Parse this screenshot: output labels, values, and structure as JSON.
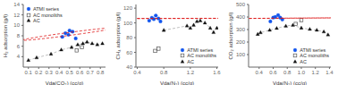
{
  "chart_data": [
    {
      "type": "scatter",
      "x_label": "Vda(CO₂) (cc/g)",
      "y_label": "H₂ adsorption (g/l)",
      "xlim": [
        0.05,
        0.85
      ],
      "ylim": [
        2,
        14
      ],
      "xticks": [
        0.1,
        0.2,
        0.3,
        0.4,
        0.5,
        0.6,
        0.7,
        0.8
      ],
      "yticks": [
        4,
        6,
        8,
        10,
        12,
        14
      ],
      "grid": false,
      "legend": "upper left",
      "series": [
        {
          "name": "ATMI series",
          "color": "#1155ee",
          "marker": "circle",
          "x": [
            0.43,
            0.46,
            0.49,
            0.5,
            0.53,
            0.56
          ],
          "values": [
            7.8,
            8.5,
            8.2,
            9.0,
            8.8,
            7.5
          ]
        },
        {
          "name": "AC monoliths",
          "color": "#555555",
          "marker": "open_square",
          "line_style": "dashed",
          "x": [
            0.57,
            0.62
          ],
          "values": [
            5.2,
            5.8
          ]
        },
        {
          "name": "AC",
          "color": "#111111",
          "marker": "triangle",
          "line_style": "dashed",
          "x": [
            0.1,
            0.18,
            0.32,
            0.42,
            0.52,
            0.58,
            0.63,
            0.67,
            0.72,
            0.77,
            0.82
          ],
          "values": [
            3.3,
            3.8,
            4.5,
            5.3,
            5.8,
            6.3,
            6.5,
            6.8,
            6.5,
            6.3,
            6.5
          ]
        }
      ],
      "ellipse": {
        "x": 0.495,
        "y": 8.35,
        "width": 0.2,
        "height": 2.6,
        "angle": -20,
        "color": "#dd1111",
        "line_style": "dashed"
      }
    },
    {
      "type": "scatter",
      "x_label": "Vda(N₂) (cc/g)",
      "y_label": "CH₄ adsorption (g/l)",
      "xlim": [
        0.38,
        1.62
      ],
      "ylim": [
        40,
        125
      ],
      "xticks": [
        0.4,
        0.8,
        1.2,
        1.6
      ],
      "yticks": [
        40,
        60,
        80,
        100,
        120
      ],
      "grid": false,
      "legend": "lower right",
      "series": [
        {
          "name": "ATMI series",
          "color": "#1155ee",
          "marker": "circle",
          "x": [
            0.58,
            0.62,
            0.65,
            0.68,
            0.72,
            0.75
          ],
          "values": [
            103,
            107,
            105,
            110,
            106,
            102
          ]
        },
        {
          "name": "AC monoliths",
          "color": "#555555",
          "marker": "open_square",
          "line_style": "dashed",
          "x": [
            0.67,
            0.72
          ],
          "values": [
            62,
            65
          ]
        },
        {
          "name": "AC",
          "color": "#111111",
          "marker": "triangle",
          "line_style": "dashed",
          "x": [
            0.8,
            1.15,
            1.2,
            1.25,
            1.3,
            1.35,
            1.42,
            1.5,
            1.55,
            1.6
          ],
          "values": [
            90,
            96,
            93,
            97,
            102,
            103,
            100,
            93,
            87,
            93
          ]
        }
      ],
      "ellipse": {
        "x": 0.655,
        "y": 106,
        "width": 0.19,
        "height": 13,
        "angle": -80,
        "color": "#dd1111",
        "line_style": "dashed"
      }
    },
    {
      "type": "scatter",
      "x_label": "Vda(N₂) (cc/g)",
      "y_label": "CO₂ adsorption (g/l)",
      "xlim": [
        0.25,
        1.42
      ],
      "ylim": [
        0,
        500
      ],
      "xticks": [
        0.4,
        0.6,
        0.8,
        {
          "value": 1.0,
          "label": "1.0"
        },
        1.2,
        1.4
      ],
      "yticks": [
        100,
        200,
        300,
        400,
        500
      ],
      "grid": false,
      "legend": "lower right",
      "series": [
        {
          "name": "ATMI series",
          "color": "#1155ee",
          "marker": "circle",
          "x": [
            0.56,
            0.6,
            0.63,
            0.67,
            0.7,
            0.73
          ],
          "values": [
            365,
            395,
            400,
            415,
            395,
            380
          ]
        },
        {
          "name": "AC monoliths",
          "color": "#555555",
          "marker": "open_square",
          "line_style": "dashed",
          "x": [
            0.92,
            1.0
          ],
          "values": [
            345,
            375
          ]
        },
        {
          "name": "AC",
          "color": "#111111",
          "marker": "triangle",
          "line_style": "dashed",
          "x": [
            0.38,
            0.42,
            0.55,
            0.65,
            0.78,
            0.88,
            1.0,
            1.12,
            1.22,
            1.32,
            1.38
          ],
          "values": [
            262,
            275,
            295,
            310,
            328,
            335,
            312,
            302,
            295,
            282,
            258
          ]
        }
      ],
      "ellipse": {
        "x": 0.635,
        "y": 390,
        "width": 0.21,
        "height": 75,
        "angle": -15,
        "color": "#dd1111",
        "line_style": "dashed"
      }
    }
  ]
}
